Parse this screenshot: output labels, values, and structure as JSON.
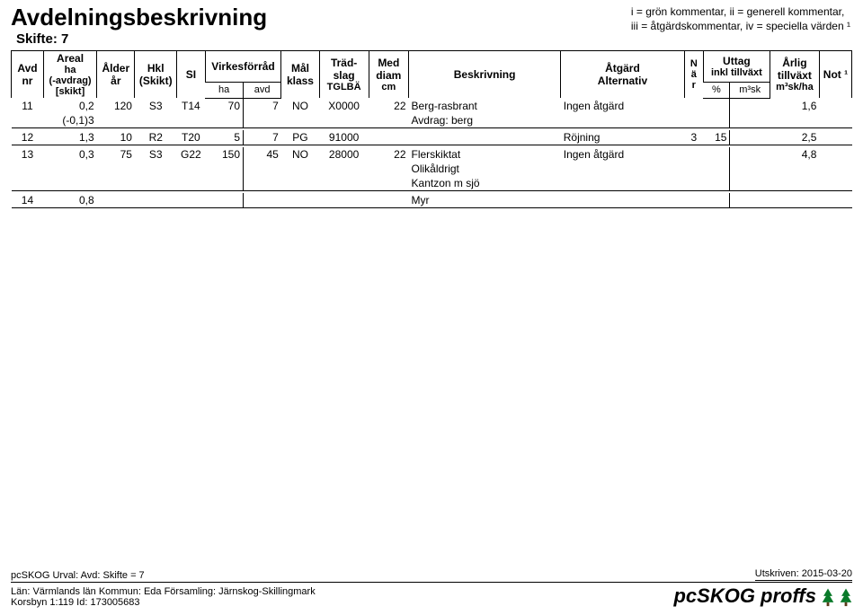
{
  "header": {
    "title": "Avdelningsbeskrivning",
    "subtitle": "Skifte: 7",
    "legend_line1": "i = grön kommentar, ii = generell kommentar,",
    "legend_line2": "iii = åtgärdskommentar, iv = speciella värden ¹"
  },
  "columns": {
    "avd_nr_1": "Avd",
    "avd_nr_2": "nr",
    "areal_1": "Areal",
    "areal_2": "ha",
    "areal_3": "(-avdrag)",
    "areal_4": "[skikt]",
    "alder_1": "Ålder",
    "alder_2": "år",
    "hkl_1": "Hkl",
    "hkl_2": "(Skikt)",
    "si": "SI",
    "virkes": "Virkesförråd",
    "virkes_ha": "ha",
    "virkes_avd": "avd",
    "mal_1": "Mål",
    "mal_2": "klass",
    "trad_1": "Träd-",
    "trad_2": "slag",
    "trad_3": "TGLBÄ",
    "med_1": "Med",
    "med_2": "diam",
    "med_3": "cm",
    "beskrivning": "Beskrivning",
    "atgard_1": "Åtgärd",
    "atgard_2": "Alternativ",
    "nar_1": "N",
    "nar_2": "ä",
    "nar_3": "r",
    "uttag_1": "Uttag",
    "uttag_2": "inkl tillväxt",
    "uttag_pct": "%",
    "uttag_m3sk": "m³sk",
    "arlig_1": "Årlig",
    "arlig_2": "tillväxt",
    "arlig_3": "m³sk/ha",
    "not": "Not ¹"
  },
  "rows": [
    {
      "avd": "11",
      "areal": "0,2",
      "areal2": "(-0,1)3",
      "alder": "120",
      "hkl": "S3",
      "si": "T14",
      "v_ha": "70",
      "v_avd": "7",
      "mal": "NO",
      "trad": "X0000",
      "diam": "22",
      "beskr": [
        "Berg-rasbrant",
        "Avdrag: berg"
      ],
      "atgard": "Ingen åtgärd",
      "nar": "",
      "pct": "",
      "m3sk": "",
      "arlig": "1,6",
      "not": ""
    },
    {
      "avd": "12",
      "areal": "1,3",
      "areal2": "",
      "alder": "10",
      "hkl": "R2",
      "si": "T20",
      "v_ha": "5",
      "v_avd": "7",
      "mal": "PG",
      "trad": "91000",
      "diam": "",
      "beskr": [
        ""
      ],
      "atgard": "Röjning",
      "nar": "3",
      "pct": "15",
      "m3sk": "",
      "arlig": "2,5",
      "not": ""
    },
    {
      "avd": "13",
      "areal": "0,3",
      "areal2": "",
      "alder": "75",
      "hkl": "S3",
      "si": "G22",
      "v_ha": "150",
      "v_avd": "45",
      "mal": "NO",
      "trad": "28000",
      "diam": "22",
      "beskr": [
        "Flerskiktat",
        "Olikåldrigt",
        "Kantzon m sjö"
      ],
      "atgard": "Ingen åtgärd",
      "nar": "",
      "pct": "",
      "m3sk": "",
      "arlig": "4,8",
      "not": ""
    },
    {
      "avd": "14",
      "areal": "0,8",
      "areal2": "",
      "alder": "",
      "hkl": "",
      "si": "",
      "v_ha": "",
      "v_avd": "",
      "mal": "",
      "trad": "",
      "diam": "",
      "beskr": [
        "Myr"
      ],
      "atgard": "",
      "nar": "",
      "pct": "",
      "m3sk": "",
      "arlig": "",
      "not": ""
    }
  ],
  "footer": {
    "urval": "pcSKOG Urval: Avd: Skifte = 7",
    "lan": "Län: Värmlands län   Kommun: Eda   Församling: Järnskog-Skillingmark",
    "korsbyn": "Korsbyn 1:119 Id: 173005683",
    "utskriven": "Utskriven: 2015-03-20",
    "brand": "pcSKOG proffs"
  }
}
